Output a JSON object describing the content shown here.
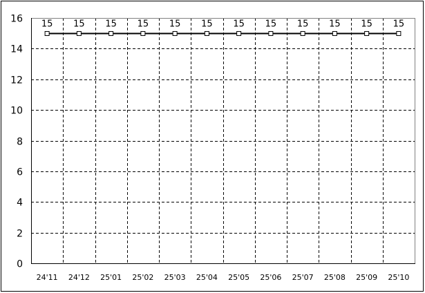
{
  "chart_data": {
    "type": "line",
    "categories": [
      "24'11",
      "24'12",
      "25'01",
      "25'02",
      "25'03",
      "25'04",
      "25'05",
      "25'06",
      "25'07",
      "25'08",
      "25'09",
      "25'10"
    ],
    "series": [
      {
        "values": [
          15,
          15,
          15,
          15,
          15,
          15,
          15,
          15,
          15,
          15,
          15,
          15
        ]
      }
    ],
    "data_labels": true,
    "ylim": [
      0,
      16
    ],
    "yticks": [
      0,
      2,
      4,
      6,
      8,
      10,
      12,
      14,
      16
    ],
    "grid": true,
    "grid_style": "dashed",
    "marker": "square",
    "colors": {
      "line": "#000000",
      "grid": "#000000",
      "frame_top_right": "#808080"
    }
  }
}
